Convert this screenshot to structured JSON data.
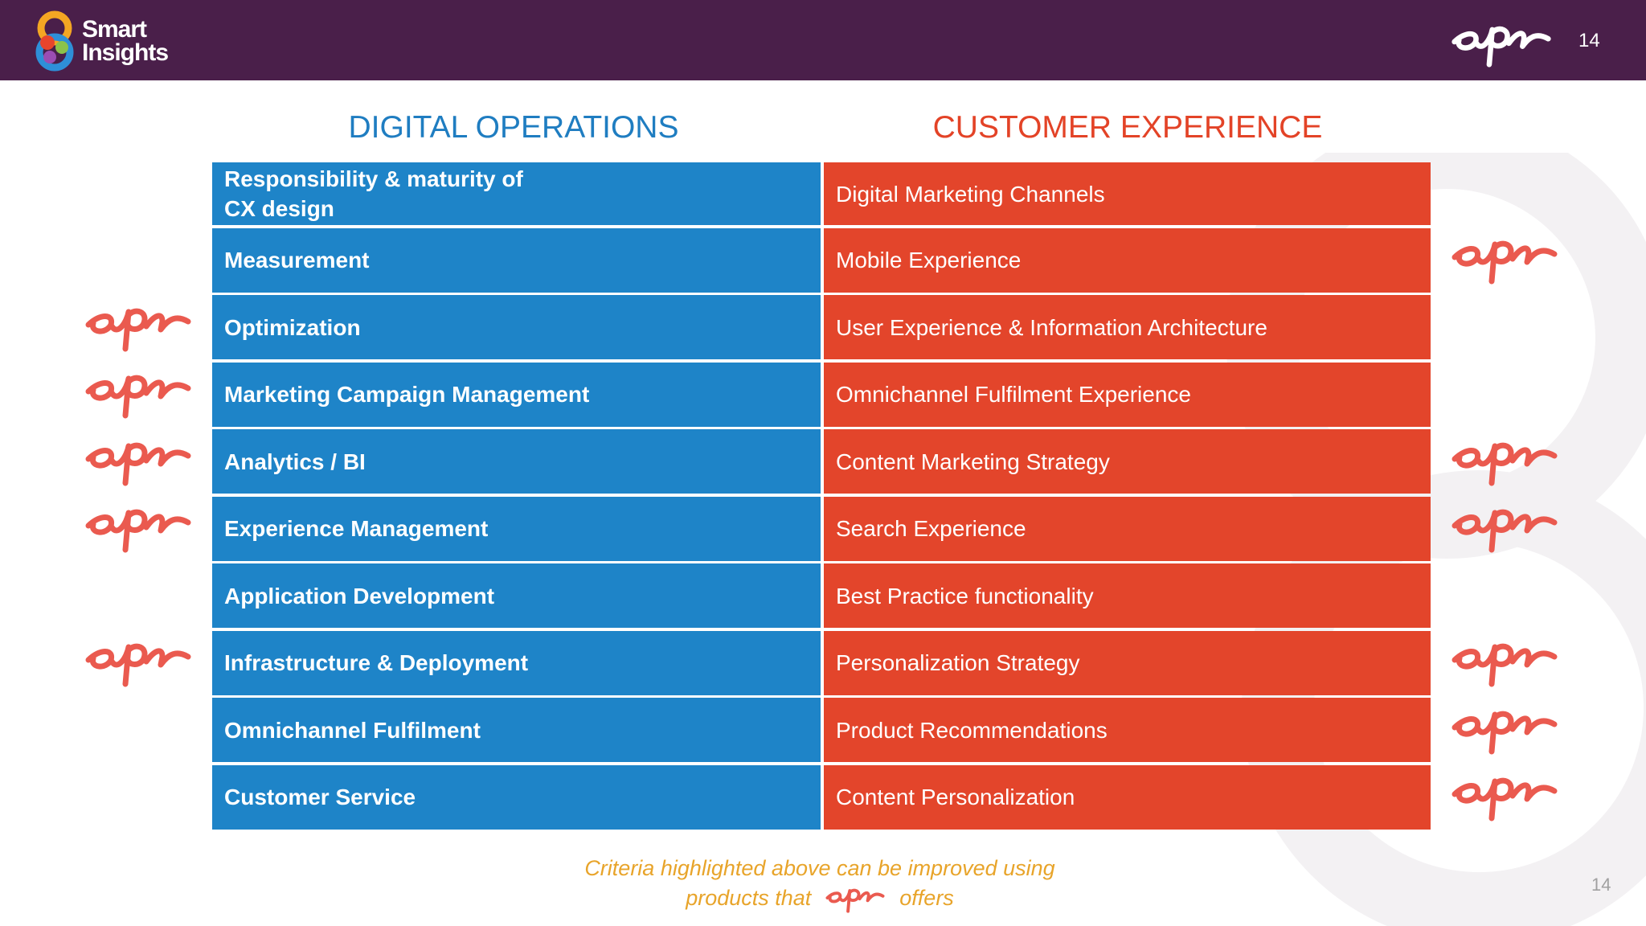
{
  "logo": {
    "line1": "Smart",
    "line2": "Insights"
  },
  "page_number": "14",
  "headers": {
    "digital_operations": "DIGITAL OPERATIONS",
    "customer_experience": "CUSTOMER EXPERIENCE"
  },
  "rows": [
    {
      "digital": "Responsibility & maturity of\nCX design",
      "customer": "Digital Marketing Channels",
      "epi_left": false,
      "epi_right": false
    },
    {
      "digital": "Measurement",
      "customer": "Mobile Experience",
      "epi_left": false,
      "epi_right": true
    },
    {
      "digital": "Optimization",
      "customer": "User Experience & Information Architecture",
      "epi_left": true,
      "epi_right": false
    },
    {
      "digital": "Marketing Campaign Management",
      "customer": "Omnichannel Fulfilment Experience",
      "epi_left": true,
      "epi_right": false
    },
    {
      "digital": "Analytics / BI",
      "customer": "Content Marketing Strategy",
      "epi_left": true,
      "epi_right": true
    },
    {
      "digital": "Experience  Management",
      "customer": "Search Experience",
      "epi_left": true,
      "epi_right": true
    },
    {
      "digital": "Application Development",
      "customer": "Best Practice functionality",
      "epi_left": false,
      "epi_right": false
    },
    {
      "digital": "Infrastructure & Deployment",
      "customer": "Personalization Strategy",
      "epi_left": true,
      "epi_right": true
    },
    {
      "digital": "Omnichannel Fulfilment",
      "customer": "Product Recommendations",
      "epi_left": false,
      "epi_right": true
    },
    {
      "digital": "Customer Service",
      "customer": "Content Personalization",
      "epi_left": false,
      "epi_right": true
    }
  ],
  "footnote": {
    "line1": "Criteria highlighted above can be improved using",
    "line2_before": "products that",
    "line2_after": "offers"
  },
  "colors": {
    "topbar": "#4a1f4a",
    "digital_blue": "#1e84c8",
    "customer_red": "#e3452b",
    "epi_coral": "#ea5a4f",
    "footnote_orange": "#e8a42a"
  }
}
